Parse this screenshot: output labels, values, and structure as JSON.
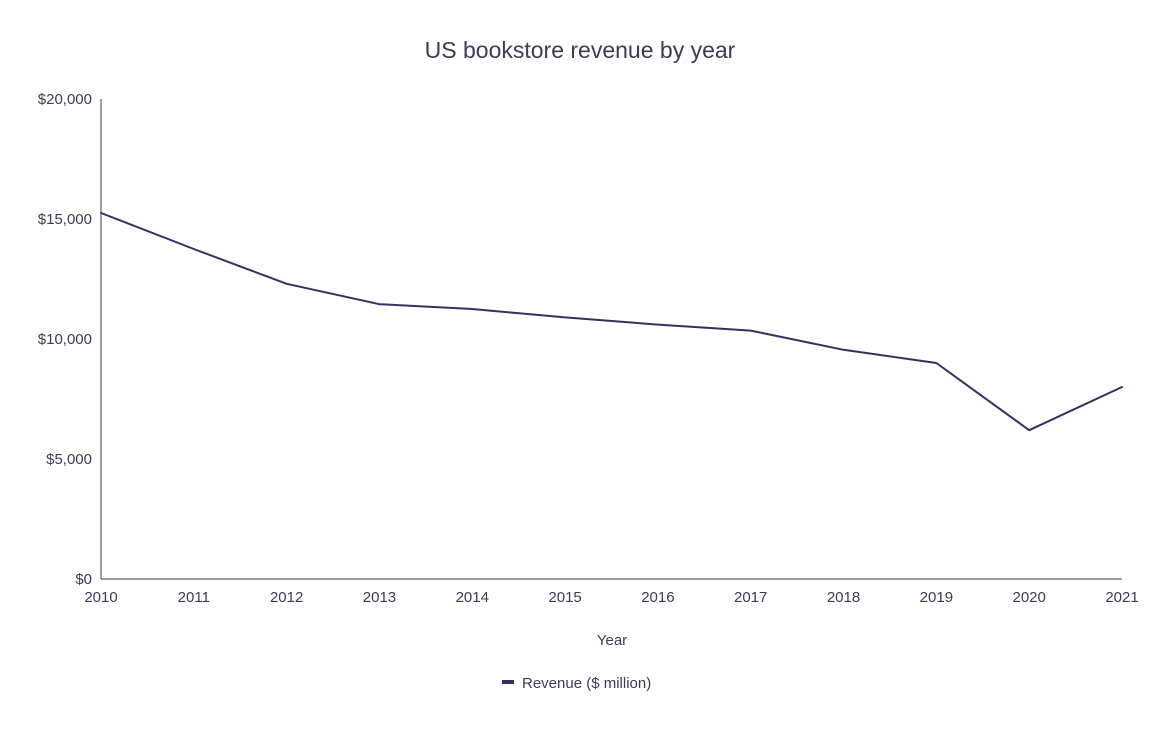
{
  "chart_data": {
    "type": "line",
    "title": "US bookstore revenue by year",
    "xlabel": "Year",
    "ylabel": "",
    "categories": [
      "2010",
      "2011",
      "2012",
      "2013",
      "2014",
      "2015",
      "2016",
      "2017",
      "2018",
      "2019",
      "2020",
      "2021"
    ],
    "series": [
      {
        "name": "Revenue ($ million)",
        "values": [
          15250,
          13750,
          12300,
          11450,
          11250,
          10900,
          10600,
          10350,
          9550,
          9000,
          6200,
          8000
        ],
        "color": "#3b2d5e"
      }
    ],
    "ylim": [
      0,
      20000
    ],
    "yticks": [
      0,
      5000,
      10000,
      15000,
      20000
    ],
    "ytick_labels": [
      "$0",
      "$5,000",
      "$10,000",
      "$15,000",
      "$20,000"
    ],
    "grid": false,
    "legend_position": "bottom-center"
  }
}
